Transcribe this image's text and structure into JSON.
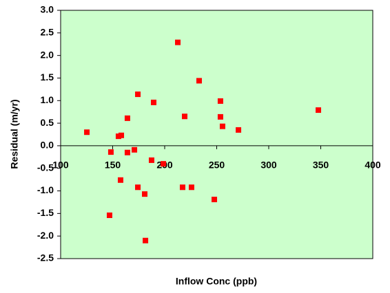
{
  "chart_data": {
    "type": "scatter",
    "x_label": "Inflow Conc (ppb)",
    "y_label": "Residual (m/yr)",
    "x": [
      125.2,
      148.3,
      147,
      155.6,
      158.3,
      157.6,
      164.2,
      164.2,
      170.9,
      174.2,
      174.2,
      180.8,
      181.5,
      187.4,
      189.4,
      198.7,
      212.6,
      217.2,
      219.2,
      225.8,
      233.1,
      247.7,
      253.6,
      253.6,
      255.6,
      270.9,
      347.7
    ],
    "values": [
      0.3,
      -0.14,
      -1.54,
      0.21,
      0.23,
      -0.76,
      0.61,
      -0.15,
      -0.09,
      1.14,
      -0.92,
      -1.07,
      -2.1,
      -0.32,
      0.96,
      -0.4,
      2.29,
      -0.92,
      0.65,
      -0.92,
      1.44,
      -1.19,
      0.99,
      0.64,
      0.43,
      0.35,
      0.79
    ],
    "color": "#ff0000",
    "background": "#ccffcc",
    "xlim": [
      100,
      400
    ],
    "xticks": [
      100,
      150,
      200,
      250,
      300,
      350,
      400
    ],
    "ylim": [
      -2.5,
      3.0
    ],
    "yticks": [
      {
        "value": -2.5,
        "label": "-2.5"
      },
      {
        "value": -2,
        "label": "-2.0"
      },
      {
        "value": -1.5,
        "label": "-1.5"
      },
      {
        "value": -1,
        "label": "-1.0"
      },
      {
        "value": -0.5,
        "label": "-0.5"
      },
      {
        "value": 0,
        "label": "0.0"
      },
      {
        "value": 0.5,
        "label": "0.5"
      },
      {
        "value": 1,
        "label": "1.0"
      },
      {
        "value": 1.5,
        "label": "1.5"
      },
      {
        "value": 2,
        "label": "2.0"
      },
      {
        "value": 2.5,
        "label": "2.5"
      },
      {
        "value": 3,
        "label": "3.0"
      }
    ],
    "grid": false
  }
}
